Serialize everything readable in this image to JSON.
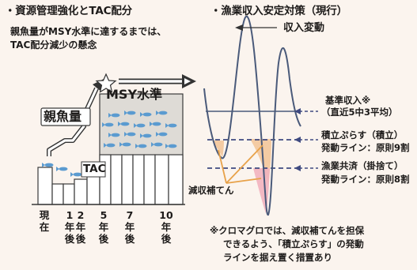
{
  "left": {
    "title": "・資源管理強化とTAC配分",
    "subtitle_line1": "親魚量がMSY水準に達するまでは、",
    "subtitle_line2": "TAC配分減少の懸念",
    "label_msy": "MSY水準",
    "label_parent": "親魚量",
    "label_tac": "TAC",
    "star_icon": "star-icon",
    "x_ticks": [
      {
        "chars": [
          "現",
          "在"
        ]
      },
      {
        "chars": [
          "1",
          "年",
          "後"
        ]
      },
      {
        "chars": [
          "2",
          "年",
          "後"
        ]
      },
      {
        "chars": [
          "5",
          "年",
          "後"
        ]
      },
      {
        "chars": [
          "7",
          "年",
          "後"
        ]
      },
      {
        "chars": [
          "10",
          "年",
          "後"
        ]
      }
    ]
  },
  "right": {
    "title": "・漁業収入安定対策（現行）",
    "label_income_change": "収入変動",
    "label_base_income_1": "基準収入※",
    "label_base_income_2": "（直近5中3平均）",
    "label_savings_1": "積立ぷらす（積立）",
    "label_savings_2": "発動ライン：原則9割",
    "label_mutual_1": "漁業共済（掛捨て）",
    "label_mutual_2": "発動ライン：原則8割",
    "label_compensation": "減収補てん",
    "footnote_line1": "※クロマグロでは、減収補てんを担保",
    "footnote_line2": "できるよう、「積立ぷらす」の発動",
    "footnote_line3": "ラインを据え置く措置あり"
  },
  "colors": {
    "bar_fill": "#ffffff",
    "bar_stroke": "#3a3a3a",
    "fish": "#5b9bd0",
    "msy_box": "#dedbd6",
    "curve": "#4a5a7a",
    "dashed": "#3f4a80",
    "fill_orange": "#f3c79a",
    "fill_pink": "#f2b3be",
    "pointer": "#e8a24a"
  }
}
